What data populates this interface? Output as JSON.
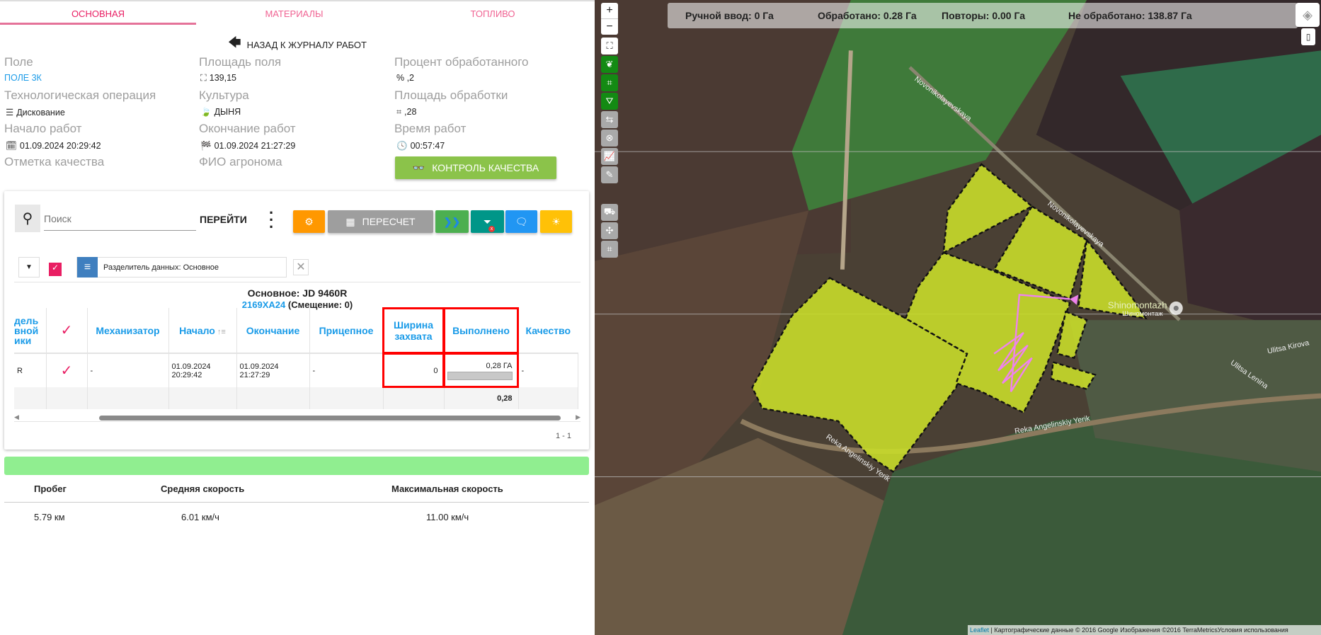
{
  "tabs": [
    "ОСНОВНАЯ",
    "МАТЕРИАЛЫ",
    "ТОПЛИВО"
  ],
  "back_label": "НАЗАД К ЖУРНАЛУ РАБОТ",
  "info": {
    "field_label": "Поле",
    "field_value": "ПОЛЕ 3К",
    "area_label": "Площадь поля",
    "area_value": "139,15",
    "percent_label": "Процент обработанного",
    "percent_value": "% ,2",
    "operation_label": "Технологическая операция",
    "operation_value": "Дискование",
    "crop_label": "Культура",
    "crop_value": "ДЫНЯ",
    "processed_label": "Площадь обработки",
    "processed_value": ",28",
    "start_label": "Начало работ",
    "start_value": "01.09.2024 20:29:42",
    "end_label": "Окончание работ",
    "end_value": "01.09.2024 21:27:29",
    "time_label": "Время работ",
    "time_value": "00:57:47",
    "quality_label": "Отметка качества",
    "agronomist_label": "ФИО агронома",
    "quality_button": "КОНТРОЛЬ КАЧЕСТВА"
  },
  "toolbar": {
    "search_placeholder": "Поиск",
    "go_label": "ПЕРЕЙТИ",
    "recalc_label": "ПЕРЕСЧЕТ",
    "colors": {
      "settings": "#ff9800",
      "recalc": "#9e9e9e",
      "forward": "#4caf50",
      "filter": "#009688",
      "chat": "#2196f3",
      "light": "#ffc107"
    }
  },
  "divider_chip": "Разделитель данных: Основное",
  "group": {
    "title": "Основное: JD 9460R",
    "plate": "2169ХА24",
    "offset": "(Смещение: 0)"
  },
  "table": {
    "headers": [
      "дель вной ики",
      "✓",
      "Механизатор",
      "Начало",
      "Окончание",
      "Прицепное",
      "Ширина захвата",
      "Выполнено",
      "Качество"
    ],
    "row": {
      "c0": "R",
      "mechanic": "-",
      "start_date": "01.09.2024",
      "start_time": "20:29:42",
      "end_date": "01.09.2024",
      "end_time": "21:27:29",
      "trailer": "-",
      "width": "0",
      "done": "0,28 ГА",
      "done_fraction": 0.0,
      "quality": "-"
    },
    "footer_total": "0,28",
    "pagination": "1 - 1"
  },
  "stats": {
    "headers": [
      "Пробег",
      "Средняя скорость",
      "Максимальная скорость"
    ],
    "values": [
      "5.79 км",
      "6.01 км/ч",
      "11.00 км/ч"
    ]
  },
  "map": {
    "summary": {
      "manual": "Ручной ввод: 0 Га",
      "processed": "Обработано: 0.28 Га",
      "repeats": "Повторы: 0.00 Га",
      "unprocessed": "Не обработано: 138.87 Га"
    },
    "labels": {
      "road1": "Novonikolayevskaya",
      "road2": "Novonikolayevskaya",
      "poi": "Shinomontazh",
      "poi_ru": "Шиномонтаж",
      "street1": "Ulitsa Kirova",
      "street2": "Ulitsa Lenina",
      "river1": "Reka Angelinskiy Yerik",
      "river2": "Reka Angelinskiy Yerik"
    },
    "attribution_link": "Leaflet",
    "attribution": " | Картографические данные © 2016 Google Изображения ©2016 TerraMetricsУсловия использования",
    "field_color": "#c8dc2a",
    "track_color": "#ee82ee"
  }
}
